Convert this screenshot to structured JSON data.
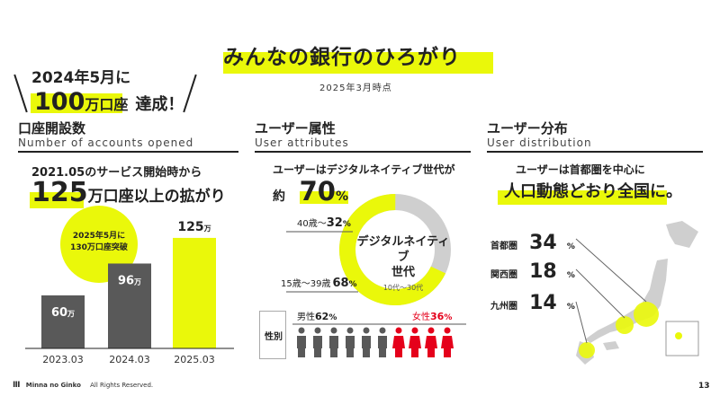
{
  "header": {
    "title": "みんなの銀行のひろがり",
    "date": "2025年3月時点"
  },
  "achievement": {
    "line1": "2024年5月に",
    "big": "100",
    "mid": "万口座",
    "tail": "達成！"
  },
  "sections": {
    "accounts": {
      "title": "口座開設数",
      "subtitle": "Number of accounts opened"
    },
    "attributes": {
      "title": "ユーザー属性",
      "subtitle": "User attributes"
    },
    "distribution": {
      "title": "ユーザー分布",
      "subtitle": "User distribution"
    }
  },
  "accounts": {
    "lead": "2021.05のサービス開始時から",
    "headline_num": "125",
    "headline_unit": "万",
    "headline_rest": "口座以上の拡がり",
    "bubble_line1": "2025年5月に",
    "bubble_line2": "130万口座突破",
    "unit": "万"
  },
  "chart_data": {
    "type": "bar",
    "categories": [
      "2023.03",
      "2024.03",
      "2025.03"
    ],
    "values": [
      60,
      96,
      125
    ],
    "value_unit": "万",
    "colors": [
      "#595959",
      "#595959",
      "#eaf80a"
    ],
    "ylim": [
      0,
      130
    ]
  },
  "attributes": {
    "lead": "ユーザーはデジタルネイティブ世代が",
    "approx": "約",
    "share": "70",
    "share_unit": "%",
    "donut_label1": "デジタルネイティブ",
    "donut_label2": "世代",
    "donut_sub": "10代～30代",
    "seg_old_label": "40歳～",
    "seg_old_value": "32",
    "seg_young_label": "15歳～39歳",
    "seg_young_value": "68",
    "pct": "%",
    "gender_label": "性別",
    "male_label": "男性",
    "male_value": "62",
    "female_label": "女性",
    "female_value": "36",
    "colors": {
      "accent": "#eaf80a",
      "grey": "#cfcfcf",
      "female": "#e5001b",
      "male": "#595959"
    }
  },
  "distribution": {
    "lead": "ユーザーは首都圏を中心に",
    "headline": "人口動態どおり全国に。",
    "regions": [
      {
        "name": "首都圏",
        "value": "34",
        "unit": "%"
      },
      {
        "name": "関西圏",
        "value": "18",
        "unit": "%"
      },
      {
        "name": "九州圏",
        "value": "14",
        "unit": "%"
      }
    ]
  },
  "footer": {
    "brand": "Minna no Ginko",
    "rights": "All Rights Reserved.",
    "page": "13"
  }
}
